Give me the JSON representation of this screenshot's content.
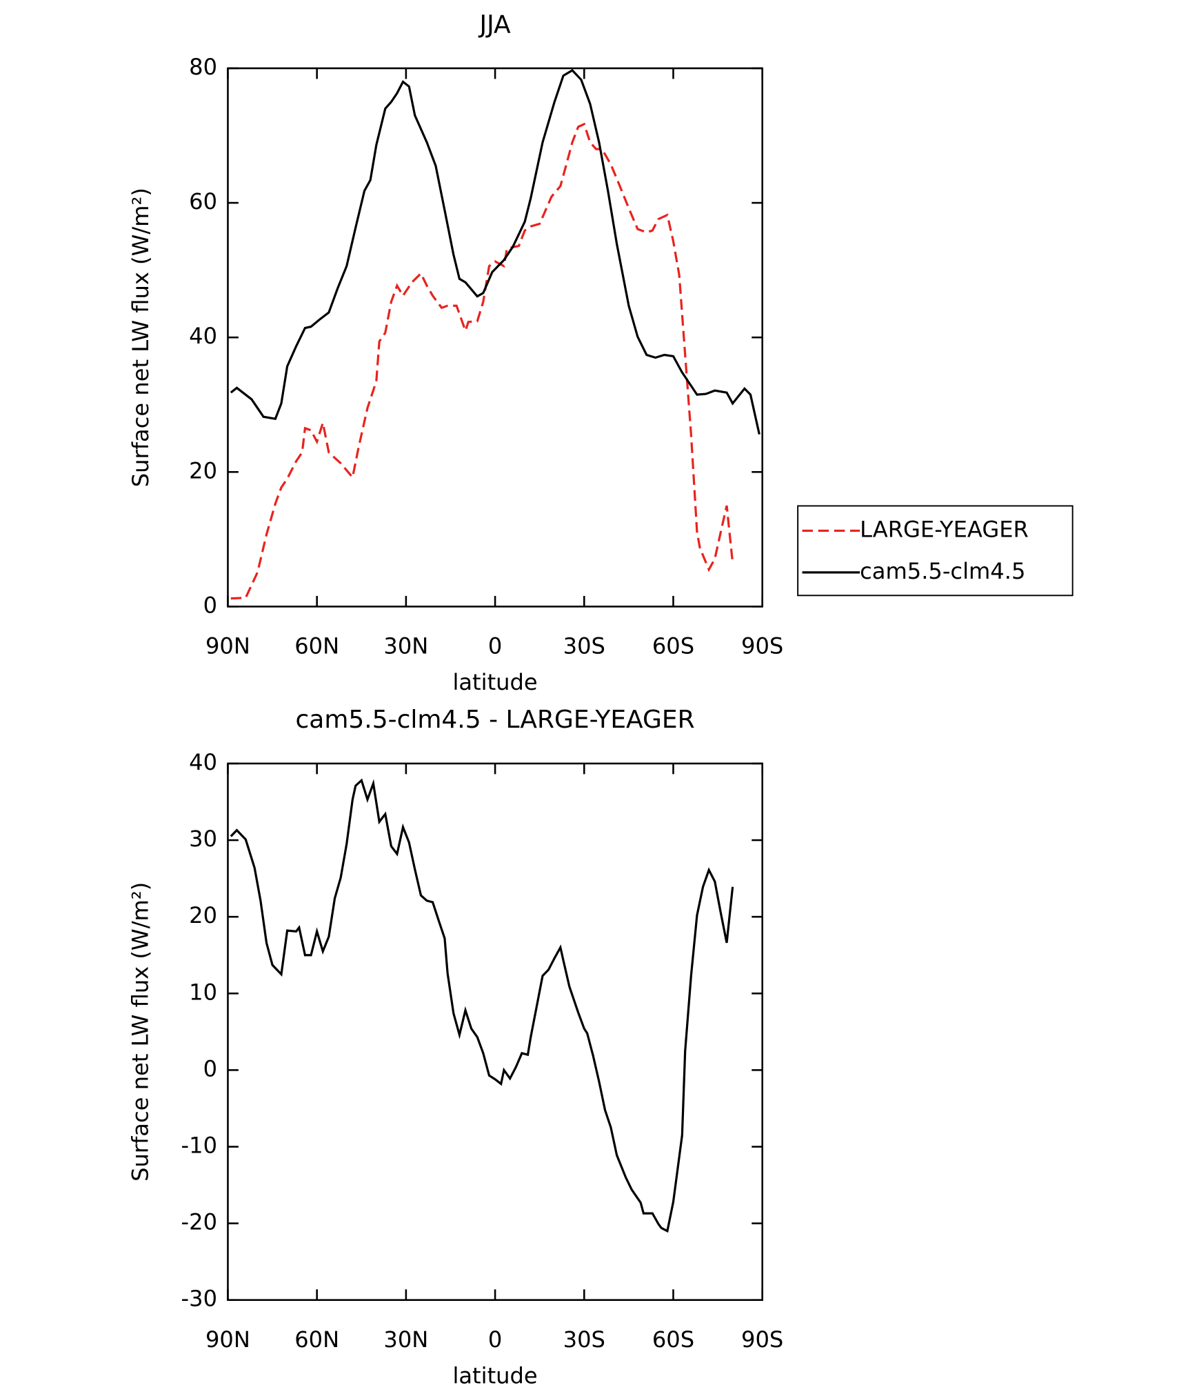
{
  "chart_data": [
    {
      "type": "line",
      "title": "JJA",
      "xlabel": "latitude",
      "ylabel": "Surface net LW flux (W/m²)",
      "xlim": [
        90,
        -90
      ],
      "xticks": [
        {
          "value": 90,
          "label": "90N"
        },
        {
          "value": 60,
          "label": "60N"
        },
        {
          "value": 30,
          "label": "30N"
        },
        0,
        {
          "value": -30,
          "label": "30S"
        },
        {
          "value": -60,
          "label": "60S"
        },
        {
          "value": -90,
          "label": "90S"
        }
      ],
      "ylim": [
        0,
        80
      ],
      "yticks": [
        0,
        20,
        40,
        60,
        80
      ],
      "legend": "right",
      "series": [
        {
          "name": "LARGE-YEAGER",
          "color": "#e8231e",
          "style": "dashed",
          "x": [
            89,
            84,
            80,
            77,
            74,
            72,
            70,
            67,
            65,
            64,
            62,
            60,
            58,
            56,
            52,
            48,
            46,
            43,
            40,
            39,
            37,
            35,
            33,
            31,
            28,
            25,
            23,
            21,
            18,
            16,
            13,
            10,
            9,
            6,
            4,
            2,
            0,
            -3,
            -4,
            -8,
            -10,
            -12,
            -15,
            -19,
            -22,
            -24,
            -26,
            -28,
            -30,
            -32,
            -34,
            -36,
            -39,
            -42,
            -45,
            -48,
            -51,
            -53,
            -55,
            -58,
            -60,
            -62,
            -64,
            -66,
            -68,
            -69,
            -72,
            -74,
            -76,
            -78,
            -80
          ],
          "values": [
            1.2,
            1.3,
            5.1,
            10.7,
            15.3,
            17.7,
            19,
            21.6,
            22.9,
            26.5,
            26.2,
            24.5,
            27.3,
            22.9,
            21.3,
            19.2,
            23.6,
            29.5,
            33.5,
            39.4,
            40.7,
            45.3,
            47.7,
            46.2,
            48.2,
            49.5,
            47.7,
            46.2,
            44.4,
            44.7,
            44.7,
            41,
            42.3,
            42.4,
            45.3,
            50.6,
            51.3,
            50.6,
            53.2,
            53.6,
            55.9,
            56.5,
            56.9,
            60.9,
            62.5,
            65.7,
            69,
            71.3,
            71.7,
            69,
            68,
            68,
            65.7,
            62.5,
            59.2,
            56.1,
            55.6,
            55.9,
            57.6,
            58.2,
            54.3,
            49.3,
            37.4,
            25.6,
            11.1,
            8.7,
            5.5,
            7.1,
            11.1,
            15,
            6.5
          ]
        },
        {
          "name": "cam5.5-clm4.5",
          "color": "#000000",
          "style": "solid",
          "x": [
            89,
            87,
            82,
            78,
            74,
            72,
            70,
            67,
            64,
            62,
            59,
            56,
            53,
            50,
            47,
            44,
            42,
            40,
            37,
            35,
            33,
            31,
            29,
            27,
            23,
            20,
            17,
            14,
            12,
            10,
            6,
            4,
            1,
            -3,
            -6,
            -10,
            -12,
            -16,
            -20,
            -23,
            -26,
            -29,
            -32,
            -35,
            -38,
            -41,
            -45,
            -48,
            -51,
            -54,
            -57,
            -60,
            -63,
            -68,
            -71,
            -74,
            -78,
            -80,
            -84,
            -86,
            -89
          ],
          "values": [
            31.8,
            32.5,
            30.8,
            28.2,
            27.9,
            30.2,
            35.7,
            38.7,
            41.4,
            41.6,
            42.7,
            43.7,
            47.3,
            50.6,
            56.3,
            61.8,
            63.4,
            68.6,
            74,
            75,
            76.3,
            78,
            77.3,
            73,
            69,
            65.5,
            58.9,
            52.3,
            48.7,
            48.2,
            46.1,
            46.6,
            49.7,
            51.5,
            53.5,
            57.2,
            60.7,
            69,
            75,
            78.9,
            79.7,
            78.3,
            74.7,
            69,
            61.8,
            53.9,
            44.7,
            40.1,
            37.4,
            37,
            37.4,
            37.2,
            34.8,
            31.5,
            31.6,
            32.1,
            31.8,
            30.2,
            32.4,
            31.5,
            25.6
          ]
        }
      ]
    },
    {
      "type": "line",
      "title": "cam5.5-clm4.5 - LARGE-YEAGER",
      "xlabel": "latitude",
      "ylabel": "Surface net LW flux (W/m²)",
      "xlim": [
        90,
        -90
      ],
      "xticks": [
        {
          "value": 90,
          "label": "90N"
        },
        {
          "value": 60,
          "label": "60N"
        },
        {
          "value": 30,
          "label": "30N"
        },
        0,
        {
          "value": -30,
          "label": "30S"
        },
        {
          "value": -60,
          "label": "60S"
        },
        {
          "value": -90,
          "label": "90S"
        }
      ],
      "ylim": [
        -30,
        40
      ],
      "yticks": [
        -30,
        -20,
        -10,
        0,
        10,
        20,
        30,
        40
      ],
      "series": [
        {
          "color": "#000000",
          "style": "solid",
          "x": [
            89,
            87,
            84,
            81,
            79,
            77,
            75,
            72,
            70,
            67,
            66,
            64,
            62,
            60,
            58,
            56,
            54,
            52,
            50,
            48,
            47,
            45,
            43,
            41,
            39,
            37,
            35,
            33,
            31,
            29,
            27,
            25,
            23,
            21,
            19,
            17,
            16,
            14,
            12,
            10,
            8,
            6,
            4,
            2,
            0,
            -2,
            -3,
            -5,
            -7,
            -9,
            -11,
            -12,
            -14,
            -16,
            -18,
            -20,
            -22,
            -23,
            -25,
            -28,
            -30,
            -31,
            -33,
            -35,
            -37,
            -39,
            -41,
            -44,
            -46,
            -49,
            -50,
            -53,
            -55,
            -56,
            -58,
            -60,
            -63,
            -64,
            -66,
            -68,
            -70,
            -72,
            -74,
            -76,
            -78,
            -80
          ],
          "values": [
            30.5,
            31.3,
            30.1,
            26.4,
            22.1,
            16.6,
            13.7,
            12.5,
            18.2,
            18.1,
            18.6,
            15,
            15,
            18.1,
            15.5,
            17.4,
            22.4,
            25.1,
            29.5,
            35.3,
            37.1,
            37.8,
            35.3,
            37.4,
            32.4,
            33.4,
            29.2,
            28.2,
            31.7,
            29.7,
            26.2,
            22.8,
            22.1,
            21.9,
            19.5,
            17.2,
            12.6,
            7.4,
            4.6,
            7.8,
            5.4,
            4.3,
            2.2,
            -0.7,
            -1.2,
            -1.8,
            0,
            -1.1,
            0.4,
            2.2,
            2,
            4.3,
            8.3,
            12.3,
            13.1,
            14.6,
            16,
            14.3,
            10.9,
            7.5,
            5.4,
            4.8,
            1.9,
            -1.5,
            -5.2,
            -7.5,
            -11.1,
            -14,
            -15.6,
            -17.3,
            -18.7,
            -18.7,
            -20.1,
            -20.6,
            -21,
            -17.2,
            -8.5,
            2.5,
            12.3,
            20.2,
            23.9,
            26.1,
            24.6,
            20.5,
            16.6,
            23.9
          ]
        }
      ]
    }
  ]
}
